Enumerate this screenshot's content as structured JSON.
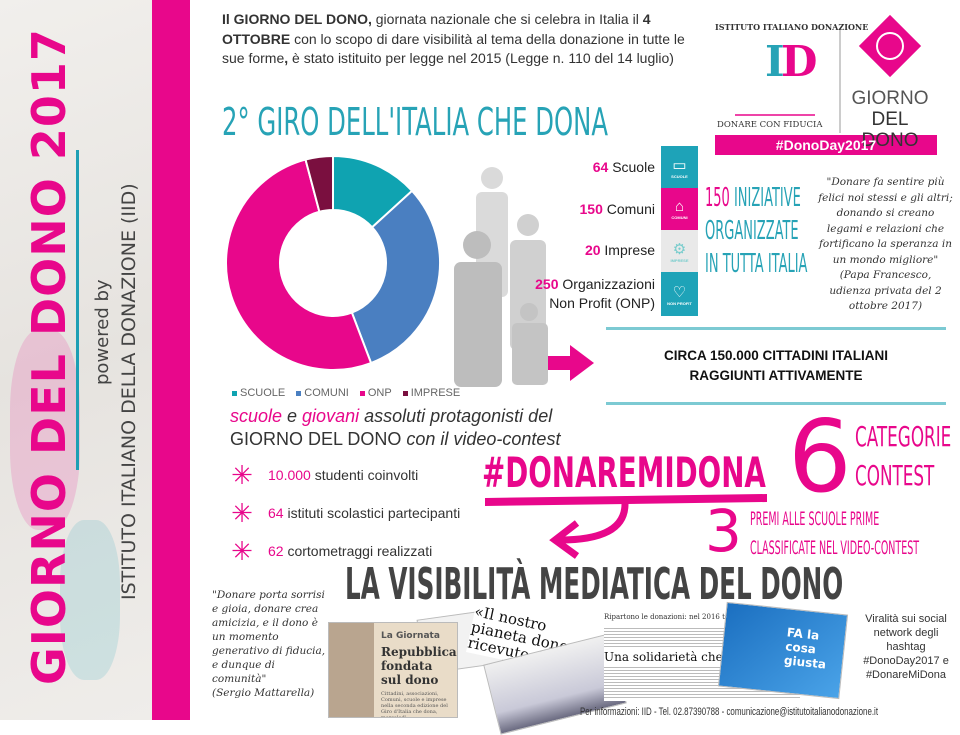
{
  "sidebar": {
    "title": "GIORNO DEL DONO 2017",
    "powered_by": "powered by",
    "org": "ISTITUTO ITALIANO DELLA DONAZIONE (IID)"
  },
  "intro": {
    "p1_bold": "Il GIORNO DEL DONO,",
    "p1": " giornata nazionale che si celebra in Italia il ",
    "p2_bold": "4 OTTOBRE",
    "p2": " con lo scopo di dare visibilità al tema della donazione in tutte le sue forme",
    "p3_bold": ",",
    "p3": " è stato istituito per legge nel 2015 (Legge n. 110 del 14 luglio)"
  },
  "logo": {
    "arc_text": "ISTITUTO ITALIANO DONAZIONE",
    "mark": "ID",
    "tagline": "DONARE CON FIDUCIA",
    "giorno": "GIORNO",
    "del_dono": "DEL DONO",
    "hashtag": "#DonoDay2017"
  },
  "giro_title": "2° GIRO DELL'ITALIA CHE DONA",
  "chart_data": {
    "type": "pie",
    "style": "donut",
    "categories": [
      "SCUOLE",
      "COMUNI",
      "ONP",
      "IMPRESE"
    ],
    "values": [
      64,
      150,
      250,
      20
    ],
    "colors": [
      "#0fa3b1",
      "#4a7fc1",
      "#e8078b",
      "#7a0f3f"
    ],
    "legend": "bottom"
  },
  "stats": [
    {
      "num": "64",
      "label": "Scuole"
    },
    {
      "num": "150",
      "label": "Comuni"
    },
    {
      "num": "20",
      "label": "Imprese"
    },
    {
      "num": "250",
      "label": "Organizzazioni",
      "label2": "Non Profit (ONP)"
    }
  ],
  "icons": [
    {
      "icon": "book-icon",
      "label": "SCUOLE",
      "color": "#1ea3b8"
    },
    {
      "icon": "town-hall-icon",
      "label": "COMUNI",
      "color": "#e8078b"
    },
    {
      "icon": "gears-icon",
      "label": "IMPRESE",
      "color": "#e9e9e9"
    },
    {
      "icon": "heart-icon",
      "label": "NON PROFIT",
      "color": "#1ea3b8"
    }
  ],
  "iniziative": {
    "num": "150",
    "l1": " INIZIATIVE",
    "l2": "ORGANIZZATE",
    "l3": "IN TUTTA ITALIA"
  },
  "papa_quote": "\"Donare fa sentire più felici noi stessi e gli altri; donando si creano legami e relazioni che fortificano la speranza in un mondo migliore\"",
  "papa_attr": "(Papa Francesco, udienza privata del 2 ottobre 2017)",
  "circa": {
    "l1": "CIRCA 150.000 CITTADINI ITALIANI",
    "l2": "RAGGIUNTI ATTIVAMENTE"
  },
  "giovani": {
    "w1": "scuole",
    "w2": " e ",
    "w3": "giovani",
    "w4": " assoluti protagonisti del",
    "l2": "GIORNO DEL DONO",
    "l2b": " con il video-contest"
  },
  "list": [
    {
      "num": "10.000",
      "text": " studenti coinvolti"
    },
    {
      "num": "64",
      "text": " istituti scolastici partecipanti"
    },
    {
      "num": "62",
      "text": " cortometraggi realizzati"
    }
  ],
  "contest": {
    "hashtag": "#DONAREMIDONA",
    "six": "6",
    "cat1": "CATEGORIE",
    "cat2": "CONTEST",
    "three": "3",
    "premi1": "PREMI ALLE SCUOLE PRIME",
    "premi2": "CLASSIFICATE NEL VIDEO-CONTEST"
  },
  "visibilita": "LA VISIBILITÀ MEDIATICA DEL DONO",
  "mattarella_quote": "\"Donare porta sorrisi e gioia, donare crea amicizia, e il dono è un momento generativo di fiducia, e dunque di comunità\"",
  "mattarella_attr": "(Sergio Mattarella)",
  "press": {
    "a_kicker": "La Giornata",
    "a_head": "Repubblica fondata sul dono",
    "a_body": "Cittadini, associazioni, Comuni, scuole e imprese nella seconda edizione del Giro d'Italia che dona, mercoledì.",
    "b_head": "«Il nostro pianeta dono ricevuto da con",
    "c_top": "Ripartono le donazioni: nel 2016 tornate ai livelli pre-crisi",
    "c_head": "Una solidarietà che va oltre le emergenze",
    "d_head": "FA la cosa giusta"
  },
  "viral": "Viralità sui social network degli hashtag #DonoDay2017 e #DonareMiDona",
  "footer": "Per informazioni: IID - Tel. 02.87390788 - comunicazione@istitutoitalianodonazione.it"
}
